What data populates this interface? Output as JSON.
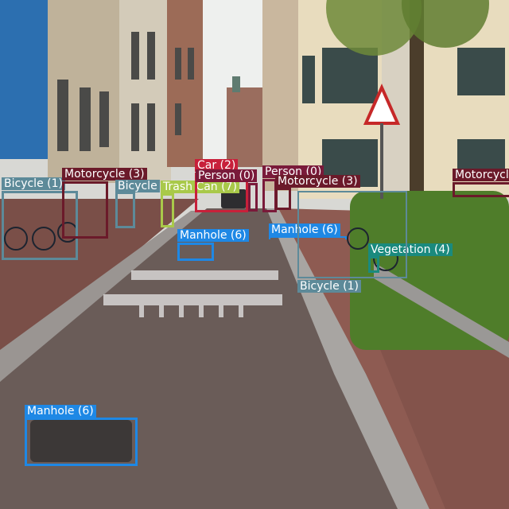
{
  "detections": [
    {
      "label": "Bicycle (1)",
      "color": "#5d8a99"
    },
    {
      "label": "Motorcycle (3)",
      "color": "#6b1a2a"
    },
    {
      "label": "Bicycle",
      "color": "#5d8a99"
    },
    {
      "label": "Trash Can (7)",
      "color": "#a9c94a"
    },
    {
      "label": "Car (2)",
      "color": "#c8203a"
    },
    {
      "label": "Person (0)",
      "color": "#7a1a3a"
    },
    {
      "label": "Person (0)",
      "color": "#7a1a3a"
    },
    {
      "label": "Motorcycle (3)",
      "color": "#6b1a2a"
    },
    {
      "label": "Motorcycle",
      "color": "#6b1a2a"
    },
    {
      "label": "Manhole (6)",
      "color": "#1e88e5"
    },
    {
      "label": "Manhole (6)",
      "color": "#1e88e5"
    },
    {
      "label": "Vegetation (4)",
      "color": "#1a8a7e"
    },
    {
      "label": "Bicycle (1)",
      "color": "#5d8a99"
    },
    {
      "label": "Manhole (6)",
      "color": "#1e88e5"
    }
  ]
}
